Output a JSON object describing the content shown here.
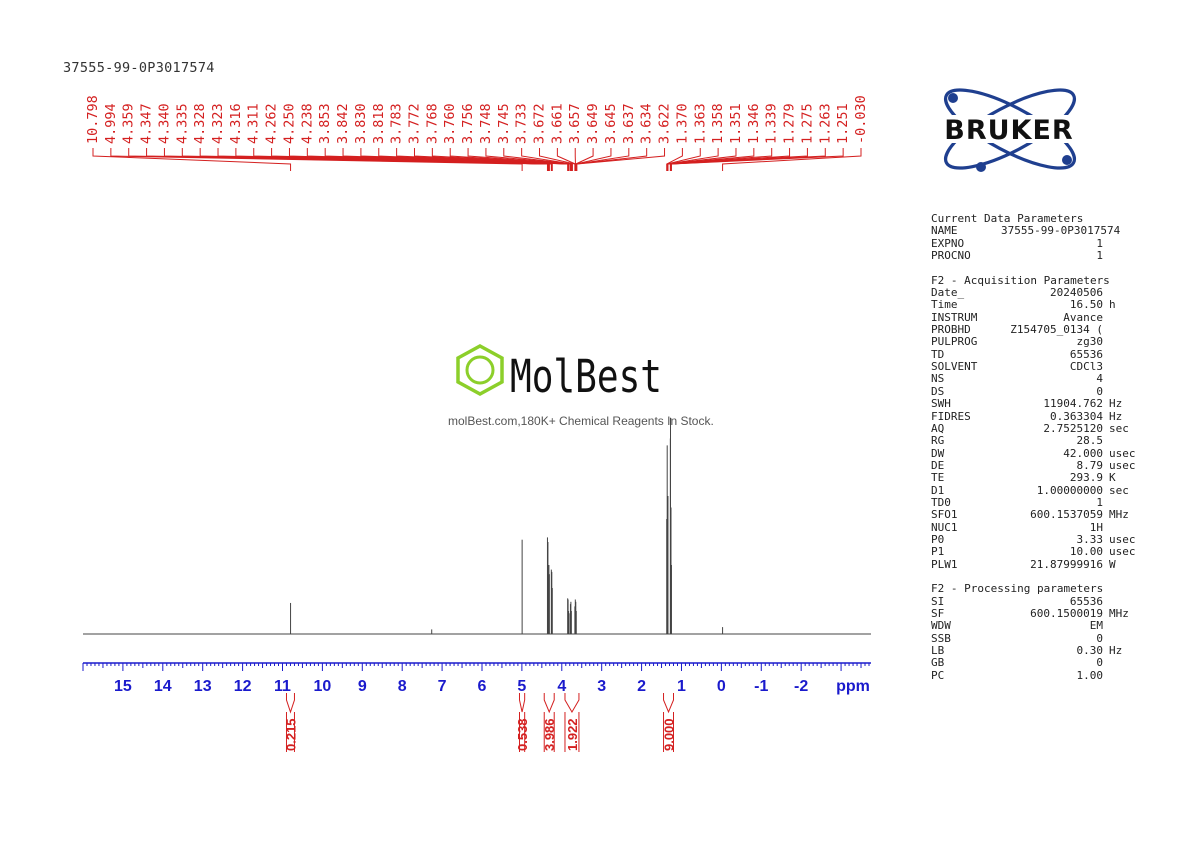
{
  "sample_name": "37555-99-0P3017574",
  "logos": {
    "bruker": "BRUKER",
    "molbest_brand": "MolBest",
    "molbest_caption": "molBest.com,180K+ Chemical Reagents In Stock."
  },
  "params": {
    "current_header": "Current Data Parameters",
    "current": [
      {
        "k": "NAME",
        "v": "37555-99-0P3017574",
        "u": ""
      },
      {
        "k": "EXPNO",
        "v": "1",
        "u": ""
      },
      {
        "k": "PROCNO",
        "v": "1",
        "u": ""
      }
    ],
    "acq_header": "F2 - Acquisition Parameters",
    "acq": [
      {
        "k": "Date_",
        "v": "20240506",
        "u": ""
      },
      {
        "k": "Time",
        "v": "16.50",
        "u": "h"
      },
      {
        "k": "INSTRUM",
        "v": "Avance",
        "u": ""
      },
      {
        "k": "PROBHD",
        "v": "Z154705_0134 (",
        "u": ""
      },
      {
        "k": "PULPROG",
        "v": "zg30",
        "u": ""
      },
      {
        "k": "TD",
        "v": "65536",
        "u": ""
      },
      {
        "k": "SOLVENT",
        "v": "CDCl3",
        "u": ""
      },
      {
        "k": "NS",
        "v": "4",
        "u": ""
      },
      {
        "k": "DS",
        "v": "0",
        "u": ""
      },
      {
        "k": "SWH",
        "v": "11904.762",
        "u": "Hz"
      },
      {
        "k": "FIDRES",
        "v": "0.363304",
        "u": "Hz"
      },
      {
        "k": "AQ",
        "v": "2.7525120",
        "u": "sec"
      },
      {
        "k": "RG",
        "v": "28.5",
        "u": ""
      },
      {
        "k": "DW",
        "v": "42.000",
        "u": "usec"
      },
      {
        "k": "DE",
        "v": "8.79",
        "u": "usec"
      },
      {
        "k": "TE",
        "v": "293.9",
        "u": "K"
      },
      {
        "k": "D1",
        "v": "1.00000000",
        "u": "sec"
      },
      {
        "k": "TD0",
        "v": "1",
        "u": ""
      },
      {
        "k": "SFO1",
        "v": "600.1537059",
        "u": "MHz"
      },
      {
        "k": "NUC1",
        "v": "1H",
        "u": ""
      },
      {
        "k": "P0",
        "v": "3.33",
        "u": "usec"
      },
      {
        "k": "P1",
        "v": "10.00",
        "u": "usec"
      },
      {
        "k": "PLW1",
        "v": "21.87999916",
        "u": "W"
      }
    ],
    "proc_header": "F2 - Processing parameters",
    "proc": [
      {
        "k": "SI",
        "v": "65536",
        "u": ""
      },
      {
        "k": "SF",
        "v": "600.1500019",
        "u": "MHz"
      },
      {
        "k": "WDW",
        "v": "EM",
        "u": ""
      },
      {
        "k": "SSB",
        "v": "0",
        "u": ""
      },
      {
        "k": "LB",
        "v": "0.30",
        "u": "Hz"
      },
      {
        "k": "GB",
        "v": "0",
        "u": ""
      },
      {
        "k": "PC",
        "v": "1.00",
        "u": ""
      }
    ]
  },
  "colors": {
    "axis": "#1a1acc",
    "annotation": "#d42020",
    "trace": "#444444",
    "bruker": "#1f3f8f"
  },
  "chart_data": {
    "type": "line",
    "xlabel": "ppm",
    "xlim": [
      16.0,
      -3.75
    ],
    "x_reversed": true,
    "ticks": [
      15,
      14,
      13,
      12,
      11,
      10,
      9,
      8,
      7,
      6,
      5,
      4,
      3,
      2,
      1,
      0,
      -1,
      -2
    ],
    "tick_labels": [
      "15",
      "14",
      "13",
      "12",
      "11",
      "10",
      "9",
      "8",
      "7",
      "6",
      "5",
      "4",
      "3",
      "2",
      "1",
      "0",
      "-1",
      "-2"
    ],
    "ylim": [
      0,
      1.0
    ],
    "peaks": [
      {
        "x": 10.798,
        "y": 0.135
      },
      {
        "x": 7.26,
        "y": 0.02
      },
      {
        "x": 4.994,
        "y": 0.41
      },
      {
        "x": 4.359,
        "y": 0.42
      },
      {
        "x": 4.347,
        "y": 0.4
      },
      {
        "x": 4.335,
        "y": 0.26
      },
      {
        "x": 4.323,
        "y": 0.3
      },
      {
        "x": 4.311,
        "y": 0.26
      },
      {
        "x": 4.262,
        "y": 0.28
      },
      {
        "x": 4.25,
        "y": 0.27
      },
      {
        "x": 4.238,
        "y": 0.2
      },
      {
        "x": 3.853,
        "y": 0.155
      },
      {
        "x": 3.842,
        "y": 0.15
      },
      {
        "x": 3.83,
        "y": 0.1
      },
      {
        "x": 3.818,
        "y": 0.09
      },
      {
        "x": 3.783,
        "y": 0.13
      },
      {
        "x": 3.772,
        "y": 0.14
      },
      {
        "x": 3.76,
        "y": 0.1
      },
      {
        "x": 3.672,
        "y": 0.12
      },
      {
        "x": 3.661,
        "y": 0.15
      },
      {
        "x": 3.649,
        "y": 0.14
      },
      {
        "x": 3.637,
        "y": 0.1
      },
      {
        "x": 1.37,
        "y": 0.5
      },
      {
        "x": 1.358,
        "y": 0.82
      },
      {
        "x": 1.346,
        "y": 0.5
      },
      {
        "x": 1.339,
        "y": 0.6
      },
      {
        "x": 1.279,
        "y": 0.85
      },
      {
        "x": 1.275,
        "y": 0.94
      },
      {
        "x": 1.263,
        "y": 0.55
      },
      {
        "x": 1.251,
        "y": 0.3
      },
      {
        "x": -0.03,
        "y": 0.03
      }
    ],
    "peak_labels": [
      "10.798",
      "4.994",
      "4.359",
      "4.347",
      "4.340",
      "4.335",
      "4.328",
      "4.323",
      "4.316",
      "4.311",
      "4.262",
      "4.250",
      "4.238",
      "3.853",
      "3.842",
      "3.830",
      "3.818",
      "3.783",
      "3.772",
      "3.768",
      "3.760",
      "3.756",
      "3.748",
      "3.745",
      "3.733",
      "3.672",
      "3.661",
      "3.657",
      "3.649",
      "3.645",
      "3.637",
      "3.634",
      "3.622",
      "1.370",
      "1.363",
      "1.358",
      "1.351",
      "1.346",
      "1.339",
      "1.279",
      "1.275",
      "1.263",
      "1.251",
      "-0.030"
    ],
    "peak_label_targets": [
      10.798,
      4.994,
      4.359,
      4.347,
      4.34,
      4.335,
      4.328,
      4.323,
      4.316,
      4.311,
      4.262,
      4.25,
      4.238,
      3.853,
      3.842,
      3.83,
      3.818,
      3.783,
      3.772,
      3.768,
      3.76,
      3.756,
      3.748,
      3.745,
      3.733,
      3.672,
      3.661,
      3.657,
      3.649,
      3.645,
      3.637,
      3.634,
      3.622,
      1.37,
      1.363,
      1.358,
      1.351,
      1.346,
      1.339,
      1.279,
      1.275,
      1.263,
      1.251,
      -0.03
    ],
    "integrals": [
      {
        "label": "0.215",
        "from": 10.9,
        "to": 10.7
      },
      {
        "label": "0.538",
        "from": 5.06,
        "to": 4.93
      },
      {
        "label": "3.986",
        "from": 4.44,
        "to": 4.19
      },
      {
        "label": "1.922",
        "from": 3.92,
        "to": 3.57
      },
      {
        "label": "9.000",
        "from": 1.45,
        "to": 1.2
      }
    ]
  }
}
